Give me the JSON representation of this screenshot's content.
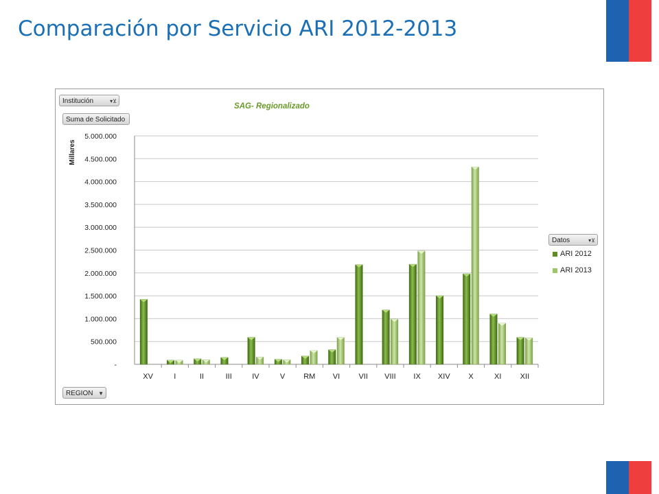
{
  "slide": {
    "title": "Comparación por Servicio ARI 2012-2013"
  },
  "pivot": {
    "filter_label": "Institución",
    "values_label": "Suma de Solicitado",
    "axis_field_label": "REGION",
    "legend_field_label": "Datos"
  },
  "colors": {
    "ari2012": "#5e8e22",
    "ari2013": "#9fc46a",
    "title": "#6a9a2a",
    "slide_title": "#1a6fb5"
  },
  "icons": {
    "dropdown": "chevron-down-icon",
    "filter": "filter-icon"
  },
  "chart_data": {
    "type": "bar",
    "title": "SAG- Regionalizado",
    "xlabel": "",
    "ylabel": "Millares",
    "ylim": [
      0,
      5000000
    ],
    "yticks": [
      "-",
      "500.000",
      "1.000.000",
      "1.500.000",
      "2.000.000",
      "2.500.000",
      "3.000.000",
      "3.500.000",
      "4.000.000",
      "4.500.000",
      "5.000.000"
    ],
    "categories": [
      "XV",
      "I",
      "II",
      "III",
      "IV",
      "V",
      "RM",
      "VI",
      "VII",
      "VIII",
      "IX",
      "XIV",
      "X",
      "XI",
      "XII"
    ],
    "series": [
      {
        "name": "ARI 2012",
        "values": [
          1420000,
          90000,
          120000,
          150000,
          590000,
          110000,
          180000,
          320000,
          2180000,
          1190000,
          2190000,
          1500000,
          1980000,
          1100000,
          590000
        ]
      },
      {
        "name": "ARI 2013",
        "values": [
          0,
          90000,
          100000,
          0,
          160000,
          100000,
          300000,
          590000,
          0,
          990000,
          2480000,
          0,
          4320000,
          900000,
          580000
        ]
      }
    ],
    "grid": true,
    "legend_position": "right"
  }
}
